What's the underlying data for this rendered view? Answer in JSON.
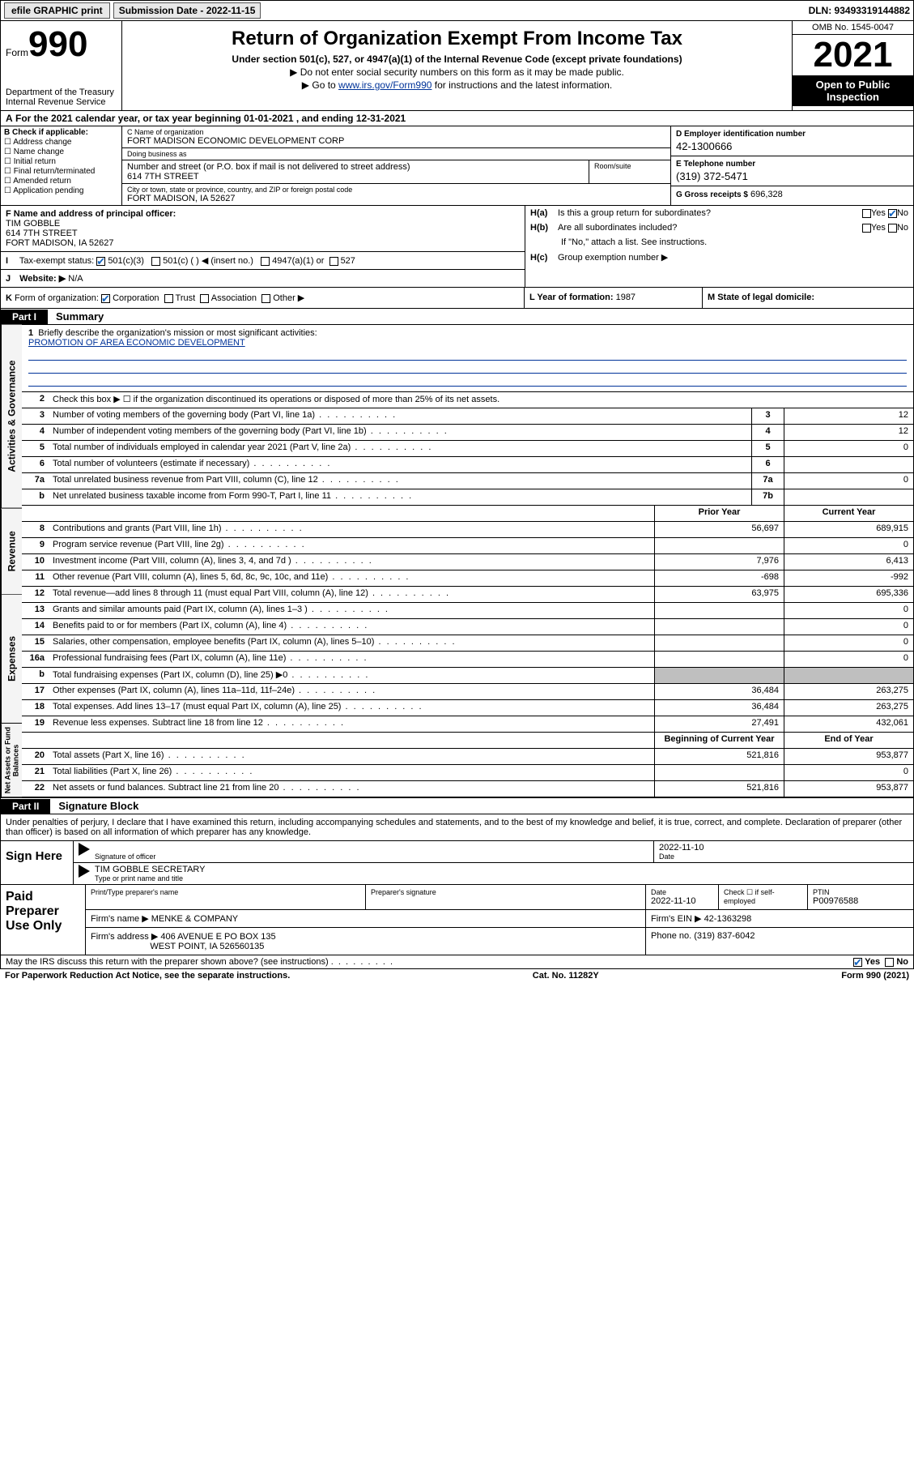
{
  "header": {
    "efile": "efile GRAPHIC print",
    "subdate_label": "Submission Date - 2022-11-15",
    "dln": "DLN: 93493319144882"
  },
  "title": {
    "form_word": "Form",
    "form_num": "990",
    "dept": "Department of the Treasury",
    "irs": "Internal Revenue Service",
    "main": "Return of Organization Exempt From Income Tax",
    "sub": "Under section 501(c), 527, or 4947(a)(1) of the Internal Revenue Code (except private foundations)",
    "line1": "Do not enter social security numbers on this form as it may be made public.",
    "line2_pre": "Go to ",
    "line2_link": "www.irs.gov/Form990",
    "line2_post": " for instructions and the latest information.",
    "omb": "OMB No. 1545-0047",
    "year": "2021",
    "open": "Open to Public Inspection"
  },
  "A": {
    "text": "For the 2021 calendar year, or tax year beginning 01-01-2021    , and ending 12-31-2021",
    "tag": "A"
  },
  "B": {
    "hdr": "B Check if applicable:",
    "opts": [
      "Address change",
      "Name change",
      "Initial return",
      "Final return/terminated",
      "Amended return",
      "Application pending"
    ]
  },
  "C": {
    "name_lbl": "C Name of organization",
    "name": "FORT MADISON ECONOMIC DEVELOPMENT CORP",
    "dba_lbl": "Doing business as",
    "dba": "",
    "street_lbl": "Number and street (or P.O. box if mail is not delivered to street address)",
    "street": "614 7TH STREET",
    "suite_lbl": "Room/suite",
    "city_lbl": "City or town, state or province, country, and ZIP or foreign postal code",
    "city": "FORT MADISON, IA  52627"
  },
  "D": {
    "lbl": "D Employer identification number",
    "val": "42-1300666"
  },
  "E": {
    "lbl": "E Telephone number",
    "val": "(319) 372-5471"
  },
  "G": {
    "lbl": "G Gross receipts $",
    "val": "696,328"
  },
  "F": {
    "lbl": "F  Name and address of principal officer:",
    "name": "TIM GOBBLE",
    "street": "614 7TH STREET",
    "city": "FORT MADISON, IA  52627"
  },
  "H": {
    "a_lbl": "Is this a group return for subordinates?",
    "a_tag": "H(a)",
    "a_yes": "Yes",
    "a_no": "No",
    "b_lbl": "Are all subordinates included?",
    "b_tag": "H(b)",
    "b_note": "If \"No,\" attach a list. See instructions.",
    "c_lbl": "Group exemption number ▶",
    "c_tag": "H(c)"
  },
  "I": {
    "tag": "I",
    "lbl": "Tax-exempt status:",
    "o1": "501(c)(3)",
    "o2": "501(c) (  ) ◀ (insert no.)",
    "o3": "4947(a)(1) or",
    "o4": "527"
  },
  "J": {
    "tag": "J",
    "lbl": "Website: ▶",
    "val": "N/A"
  },
  "K": {
    "tag": "K",
    "lbl": "Form of organization:",
    "o1": "Corporation",
    "o2": "Trust",
    "o3": "Association",
    "o4": "Other ▶"
  },
  "L": {
    "lbl": "L Year of formation:",
    "val": "1987"
  },
  "M": {
    "lbl": "M State of legal domicile:",
    "val": ""
  },
  "part1": {
    "hdr": "Part I",
    "title": "Summary",
    "q1_lbl": "Briefly describe the organization's mission or most significant activities:",
    "q1_val": "PROMOTION OF AREA ECONOMIC DEVELOPMENT",
    "q2": "Check this box ▶ ☐  if the organization discontinued its operations or disposed of more than 25% of its net assets.",
    "rows_top": [
      {
        "n": "3",
        "t": "Number of voting members of the governing body (Part VI, line 1a)",
        "box": "3",
        "v": "12"
      },
      {
        "n": "4",
        "t": "Number of independent voting members of the governing body (Part VI, line 1b)",
        "box": "4",
        "v": "12"
      },
      {
        "n": "5",
        "t": "Total number of individuals employed in calendar year 2021 (Part V, line 2a)",
        "box": "5",
        "v": "0"
      },
      {
        "n": "6",
        "t": "Total number of volunteers (estimate if necessary)",
        "box": "6",
        "v": ""
      },
      {
        "n": "7a",
        "t": "Total unrelated business revenue from Part VIII, column (C), line 12",
        "box": "7a",
        "v": "0"
      },
      {
        "n": "b",
        "t": "Net unrelated business taxable income from Form 990-T, Part I, line 11",
        "box": "7b",
        "v": ""
      }
    ],
    "colhdr_prior": "Prior Year",
    "colhdr_curr": "Current Year",
    "revenue": [
      {
        "n": "8",
        "t": "Contributions and grants (Part VIII, line 1h)",
        "p": "56,697",
        "c": "689,915"
      },
      {
        "n": "9",
        "t": "Program service revenue (Part VIII, line 2g)",
        "p": "",
        "c": "0"
      },
      {
        "n": "10",
        "t": "Investment income (Part VIII, column (A), lines 3, 4, and 7d )",
        "p": "7,976",
        "c": "6,413"
      },
      {
        "n": "11",
        "t": "Other revenue (Part VIII, column (A), lines 5, 6d, 8c, 9c, 10c, and 11e)",
        "p": "-698",
        "c": "-992"
      },
      {
        "n": "12",
        "t": "Total revenue—add lines 8 through 11 (must equal Part VIII, column (A), line 12)",
        "p": "63,975",
        "c": "695,336"
      }
    ],
    "expenses": [
      {
        "n": "13",
        "t": "Grants and similar amounts paid (Part IX, column (A), lines 1–3 )",
        "p": "",
        "c": "0"
      },
      {
        "n": "14",
        "t": "Benefits paid to or for members (Part IX, column (A), line 4)",
        "p": "",
        "c": "0"
      },
      {
        "n": "15",
        "t": "Salaries, other compensation, employee benefits (Part IX, column (A), lines 5–10)",
        "p": "",
        "c": "0"
      },
      {
        "n": "16a",
        "t": "Professional fundraising fees (Part IX, column (A), line 11e)",
        "p": "",
        "c": "0"
      },
      {
        "n": "b",
        "t": "Total fundraising expenses (Part IX, column (D), line 25) ▶0",
        "p": "SHADE",
        "c": "SHADE"
      },
      {
        "n": "17",
        "t": "Other expenses (Part IX, column (A), lines 11a–11d, 11f–24e)",
        "p": "36,484",
        "c": "263,275"
      },
      {
        "n": "18",
        "t": "Total expenses. Add lines 13–17 (must equal Part IX, column (A), line 25)",
        "p": "36,484",
        "c": "263,275"
      },
      {
        "n": "19",
        "t": "Revenue less expenses. Subtract line 18 from line 12",
        "p": "27,491",
        "c": "432,061"
      }
    ],
    "colhdr_beg": "Beginning of Current Year",
    "colhdr_end": "End of Year",
    "netassets": [
      {
        "n": "20",
        "t": "Total assets (Part X, line 16)",
        "p": "521,816",
        "c": "953,877"
      },
      {
        "n": "21",
        "t": "Total liabilities (Part X, line 26)",
        "p": "",
        "c": "0"
      },
      {
        "n": "22",
        "t": "Net assets or fund balances. Subtract line 21 from line 20",
        "p": "521,816",
        "c": "953,877"
      }
    ],
    "tabs": {
      "gov": "Activities & Governance",
      "rev": "Revenue",
      "exp": "Expenses",
      "net": "Net Assets or Fund Balances"
    }
  },
  "part2": {
    "hdr": "Part II",
    "title": "Signature Block",
    "decl": "Under penalties of perjury, I declare that I have examined this return, including accompanying schedules and statements, and to the best of my knowledge and belief, it is true, correct, and complete. Declaration of preparer (other than officer) is based on all information of which preparer has any knowledge.",
    "sign_here": "Sign Here",
    "sig_lbl": "Signature of officer",
    "date_lbl": "Date",
    "date_val": "2022-11-10",
    "name_val": "TIM GOBBLE  SECRETARY",
    "name_lbl": "Type or print name and title"
  },
  "paid": {
    "lab": "Paid Preparer Use Only",
    "r1": {
      "c1_lbl": "Print/Type preparer's name",
      "c1": "",
      "c2_lbl": "Preparer's signature",
      "c2": "",
      "c3_lbl": "Date",
      "c3": "2022-11-10",
      "c4_lbl": "Check ☐ if self-employed",
      "c4": "",
      "c5_lbl": "PTIN",
      "c5": "P00976588"
    },
    "r2": {
      "firm_lbl": "Firm's name    ▶",
      "firm": "MENKE & COMPANY",
      "ein_lbl": "Firm's EIN ▶",
      "ein": "42-1363298"
    },
    "r3": {
      "addr_lbl": "Firm's address ▶",
      "addr1": "406 AVENUE E PO BOX 135",
      "addr2": "WEST POINT, IA 526560135",
      "ph_lbl": "Phone no.",
      "ph": "(319) 837-6042"
    }
  },
  "discuss": {
    "q": "May the IRS discuss this return with the preparer shown above? (see instructions)",
    "yes": "Yes",
    "no": "No"
  },
  "footer": {
    "l": "For Paperwork Reduction Act Notice, see the separate instructions.",
    "c": "Cat. No. 11282Y",
    "r": "Form 990 (2021)"
  }
}
